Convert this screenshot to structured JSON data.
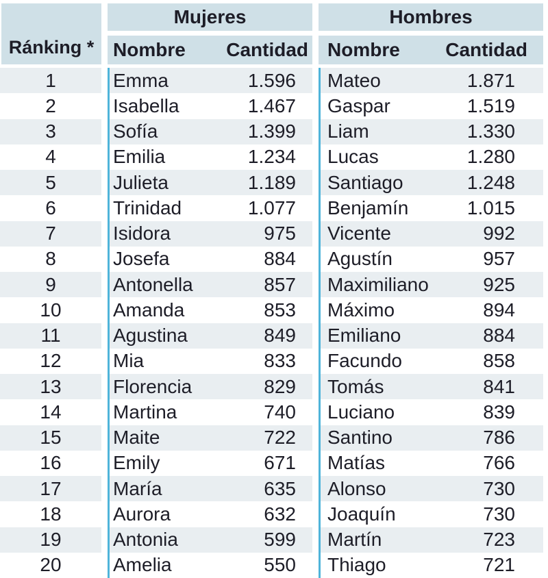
{
  "colors": {
    "background": "#ffffff",
    "header_bg": "#cfe0e7",
    "stripe_bg": "#e9eef1",
    "divider_line": "#4fb4da",
    "text": "#1d1d27"
  },
  "table_header": {
    "ranking_label": "Ránking *",
    "groups": [
      {
        "title": "Mujeres",
        "name_label": "Nombre",
        "qty_label": "Cantidad"
      },
      {
        "title": "Hombres",
        "name_label": "Nombre",
        "qty_label": "Cantidad"
      }
    ]
  },
  "chart_data": {
    "type": "table",
    "columns": [
      "Ránking *",
      "Mujeres Nombre",
      "Mujeres Cantidad",
      "Hombres Nombre",
      "Hombres Cantidad"
    ],
    "rows": [
      {
        "rank": "1",
        "mujeres_nombre": "Emma",
        "mujeres_cantidad": "1.596",
        "hombres_nombre": "Mateo",
        "hombres_cantidad": "1.871"
      },
      {
        "rank": "2",
        "mujeres_nombre": "Isabella",
        "mujeres_cantidad": "1.467",
        "hombres_nombre": "Gaspar",
        "hombres_cantidad": "1.519"
      },
      {
        "rank": "3",
        "mujeres_nombre": "Sofía",
        "mujeres_cantidad": "1.399",
        "hombres_nombre": "Liam",
        "hombres_cantidad": "1.330"
      },
      {
        "rank": "4",
        "mujeres_nombre": "Emilia",
        "mujeres_cantidad": "1.234",
        "hombres_nombre": "Lucas",
        "hombres_cantidad": "1.280"
      },
      {
        "rank": "5",
        "mujeres_nombre": "Julieta",
        "mujeres_cantidad": "1.189",
        "hombres_nombre": "Santiago",
        "hombres_cantidad": "1.248"
      },
      {
        "rank": "6",
        "mujeres_nombre": "Trinidad",
        "mujeres_cantidad": "1.077",
        "hombres_nombre": "Benjamín",
        "hombres_cantidad": "1.015"
      },
      {
        "rank": "7",
        "mujeres_nombre": "Isidora",
        "mujeres_cantidad": "975",
        "hombres_nombre": "Vicente",
        "hombres_cantidad": "992"
      },
      {
        "rank": "8",
        "mujeres_nombre": "Josefa",
        "mujeres_cantidad": "884",
        "hombres_nombre": "Agustín",
        "hombres_cantidad": "957"
      },
      {
        "rank": "9",
        "mujeres_nombre": "Antonella",
        "mujeres_cantidad": "857",
        "hombres_nombre": "Maximiliano",
        "hombres_cantidad": "925"
      },
      {
        "rank": "10",
        "mujeres_nombre": "Amanda",
        "mujeres_cantidad": "853",
        "hombres_nombre": "Máximo",
        "hombres_cantidad": "894"
      },
      {
        "rank": "11",
        "mujeres_nombre": "Agustina",
        "mujeres_cantidad": "849",
        "hombres_nombre": "Emiliano",
        "hombres_cantidad": "884"
      },
      {
        "rank": "12",
        "mujeres_nombre": "Mia",
        "mujeres_cantidad": "833",
        "hombres_nombre": "Facundo",
        "hombres_cantidad": "858"
      },
      {
        "rank": "13",
        "mujeres_nombre": "Florencia",
        "mujeres_cantidad": "829",
        "hombres_nombre": "Tomás",
        "hombres_cantidad": "841"
      },
      {
        "rank": "14",
        "mujeres_nombre": "Martina",
        "mujeres_cantidad": "740",
        "hombres_nombre": "Luciano",
        "hombres_cantidad": "839"
      },
      {
        "rank": "15",
        "mujeres_nombre": "Maite",
        "mujeres_cantidad": "722",
        "hombres_nombre": "Santino",
        "hombres_cantidad": "786"
      },
      {
        "rank": "16",
        "mujeres_nombre": "Emily",
        "mujeres_cantidad": "671",
        "hombres_nombre": "Matías",
        "hombres_cantidad": "766"
      },
      {
        "rank": "17",
        "mujeres_nombre": "María",
        "mujeres_cantidad": "635",
        "hombres_nombre": "Alonso",
        "hombres_cantidad": "730"
      },
      {
        "rank": "18",
        "mujeres_nombre": "Aurora",
        "mujeres_cantidad": "632",
        "hombres_nombre": "Joaquín",
        "hombres_cantidad": "730"
      },
      {
        "rank": "19",
        "mujeres_nombre": "Antonia",
        "mujeres_cantidad": "599",
        "hombres_nombre": "Martín",
        "hombres_cantidad": "723"
      },
      {
        "rank": "20",
        "mujeres_nombre": "Amelia",
        "mujeres_cantidad": "550",
        "hombres_nombre": "Thiago",
        "hombres_cantidad": "721"
      }
    ]
  }
}
